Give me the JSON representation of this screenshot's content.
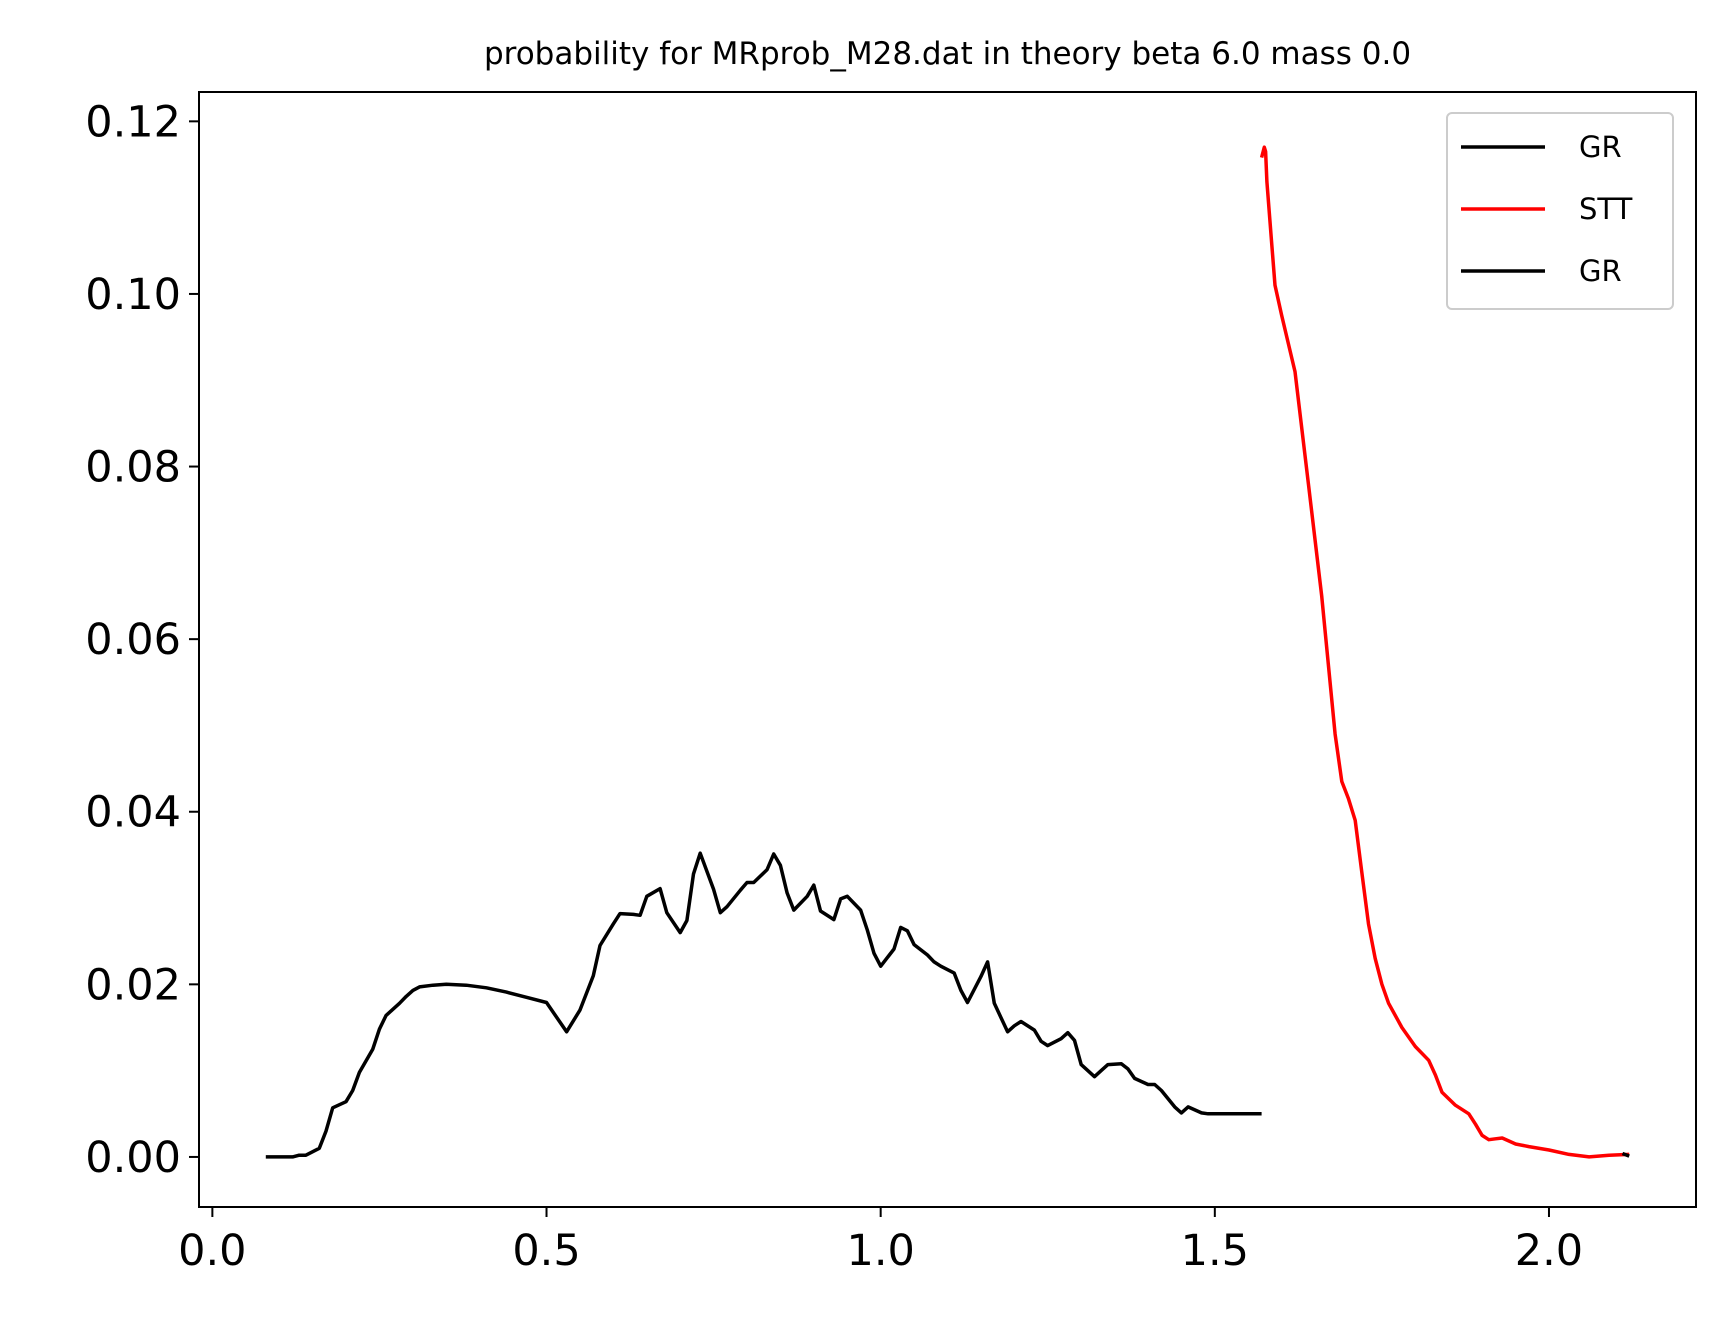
{
  "chart_data": {
    "type": "line",
    "title": "probability for MRprob_M28.dat in theory beta 6.0 mass 0.0",
    "xlabel": "",
    "ylabel": "",
    "xlim": [
      -0.02,
      2.22
    ],
    "ylim": [
      -0.0058,
      0.1234
    ],
    "xticks": [
      0.0,
      0.5,
      1.0,
      1.5,
      2.0
    ],
    "xtick_labels": [
      "0.0",
      "0.5",
      "1.0",
      "1.5",
      "2.0"
    ],
    "yticks": [
      0.0,
      0.02,
      0.04,
      0.06,
      0.08,
      0.1,
      0.12
    ],
    "ytick_labels": [
      "0.00",
      "0.02",
      "0.04",
      "0.06",
      "0.08",
      "0.10",
      "0.12"
    ],
    "grid": false,
    "legend": {
      "position": "top-right"
    },
    "series": [
      {
        "name": "GR",
        "color": "#000000",
        "x": [
          0.08,
          0.1,
          0.12,
          0.13,
          0.14,
          0.16,
          0.17,
          0.18,
          0.2,
          0.21,
          0.22,
          0.24,
          0.25,
          0.26,
          0.28,
          0.29,
          0.3,
          0.31,
          0.33,
          0.35,
          0.38,
          0.41,
          0.44,
          0.47,
          0.5,
          0.53,
          0.55,
          0.57,
          0.58,
          0.6,
          0.61,
          0.63,
          0.64,
          0.65,
          0.67,
          0.68,
          0.7,
          0.71,
          0.72,
          0.73,
          0.75,
          0.76,
          0.77,
          0.79,
          0.8,
          0.81,
          0.83,
          0.84,
          0.85,
          0.86,
          0.87,
          0.89,
          0.9,
          0.91,
          0.93,
          0.94,
          0.95,
          0.97,
          0.98,
          0.99,
          1.0,
          1.02,
          1.03,
          1.04,
          1.05,
          1.07,
          1.08,
          1.09,
          1.11,
          1.12,
          1.13,
          1.15,
          1.16,
          1.17,
          1.19,
          1.2,
          1.21,
          1.23,
          1.24,
          1.25,
          1.27,
          1.28,
          1.29,
          1.3,
          1.32,
          1.33,
          1.34,
          1.36,
          1.37,
          1.38,
          1.4,
          1.41,
          1.42,
          1.44,
          1.45,
          1.46,
          1.48,
          1.49,
          1.5,
          1.51,
          1.53,
          1.54,
          1.55,
          1.57
        ],
        "y": [
          0.0,
          0.0,
          0.0,
          0.0002,
          0.0002,
          0.001,
          0.003,
          0.0057,
          0.0064,
          0.0077,
          0.0098,
          0.0125,
          0.0148,
          0.0164,
          0.0178,
          0.0186,
          0.0193,
          0.0197,
          0.0199,
          0.02,
          0.0199,
          0.0196,
          0.0191,
          0.0185,
          0.0179,
          0.0145,
          0.017,
          0.021,
          0.0245,
          0.027,
          0.0282,
          0.0281,
          0.028,
          0.0302,
          0.0311,
          0.0283,
          0.026,
          0.0274,
          0.0328,
          0.0352,
          0.031,
          0.0283,
          0.029,
          0.0309,
          0.0318,
          0.0318,
          0.0333,
          0.0351,
          0.0338,
          0.0306,
          0.0286,
          0.0302,
          0.0315,
          0.0285,
          0.0275,
          0.0299,
          0.0302,
          0.0286,
          0.0263,
          0.0236,
          0.0221,
          0.0241,
          0.0266,
          0.0262,
          0.0246,
          0.0234,
          0.0226,
          0.0221,
          0.0213,
          0.0193,
          0.0179,
          0.0209,
          0.0226,
          0.0178,
          0.0145,
          0.0152,
          0.0157,
          0.0147,
          0.0134,
          0.0129,
          0.0137,
          0.0144,
          0.0135,
          0.0107,
          0.0093,
          0.01,
          0.0107,
          0.0108,
          0.0102,
          0.0091,
          0.0084,
          0.0084,
          0.0077,
          0.0058,
          0.0051,
          0.0058,
          0.0051,
          0.005,
          0.005,
          0.005,
          0.005,
          0.005,
          0.005,
          0.005
        ]
      },
      {
        "name": "STT",
        "color": "#ff0000",
        "x": [
          1.57,
          1.574,
          1.576,
          1.578,
          1.585,
          1.59,
          1.6,
          1.62,
          1.64,
          1.66,
          1.68,
          1.69,
          1.7,
          1.71,
          1.72,
          1.73,
          1.74,
          1.75,
          1.76,
          1.78,
          1.8,
          1.82,
          1.83,
          1.84,
          1.86,
          1.88,
          1.89,
          1.9,
          1.91,
          1.92,
          1.93,
          1.95,
          1.97,
          2.0,
          2.03,
          2.06,
          2.09,
          2.12
        ],
        "y": [
          0.1158,
          0.117,
          0.1165,
          0.113,
          0.106,
          0.101,
          0.0975,
          0.091,
          0.078,
          0.065,
          0.049,
          0.0435,
          0.0415,
          0.039,
          0.033,
          0.027,
          0.023,
          0.02,
          0.0178,
          0.015,
          0.0128,
          0.0112,
          0.0095,
          0.0075,
          0.006,
          0.005,
          0.0038,
          0.0025,
          0.002,
          0.0021,
          0.0022,
          0.0015,
          0.0012,
          0.0008,
          0.0003,
          0.0,
          0.0002,
          0.0003
        ]
      },
      {
        "name": "GR",
        "color": "#000000",
        "x": [
          2.11,
          2.12
        ],
        "y": [
          0.0004,
          0.0001
        ]
      }
    ]
  }
}
